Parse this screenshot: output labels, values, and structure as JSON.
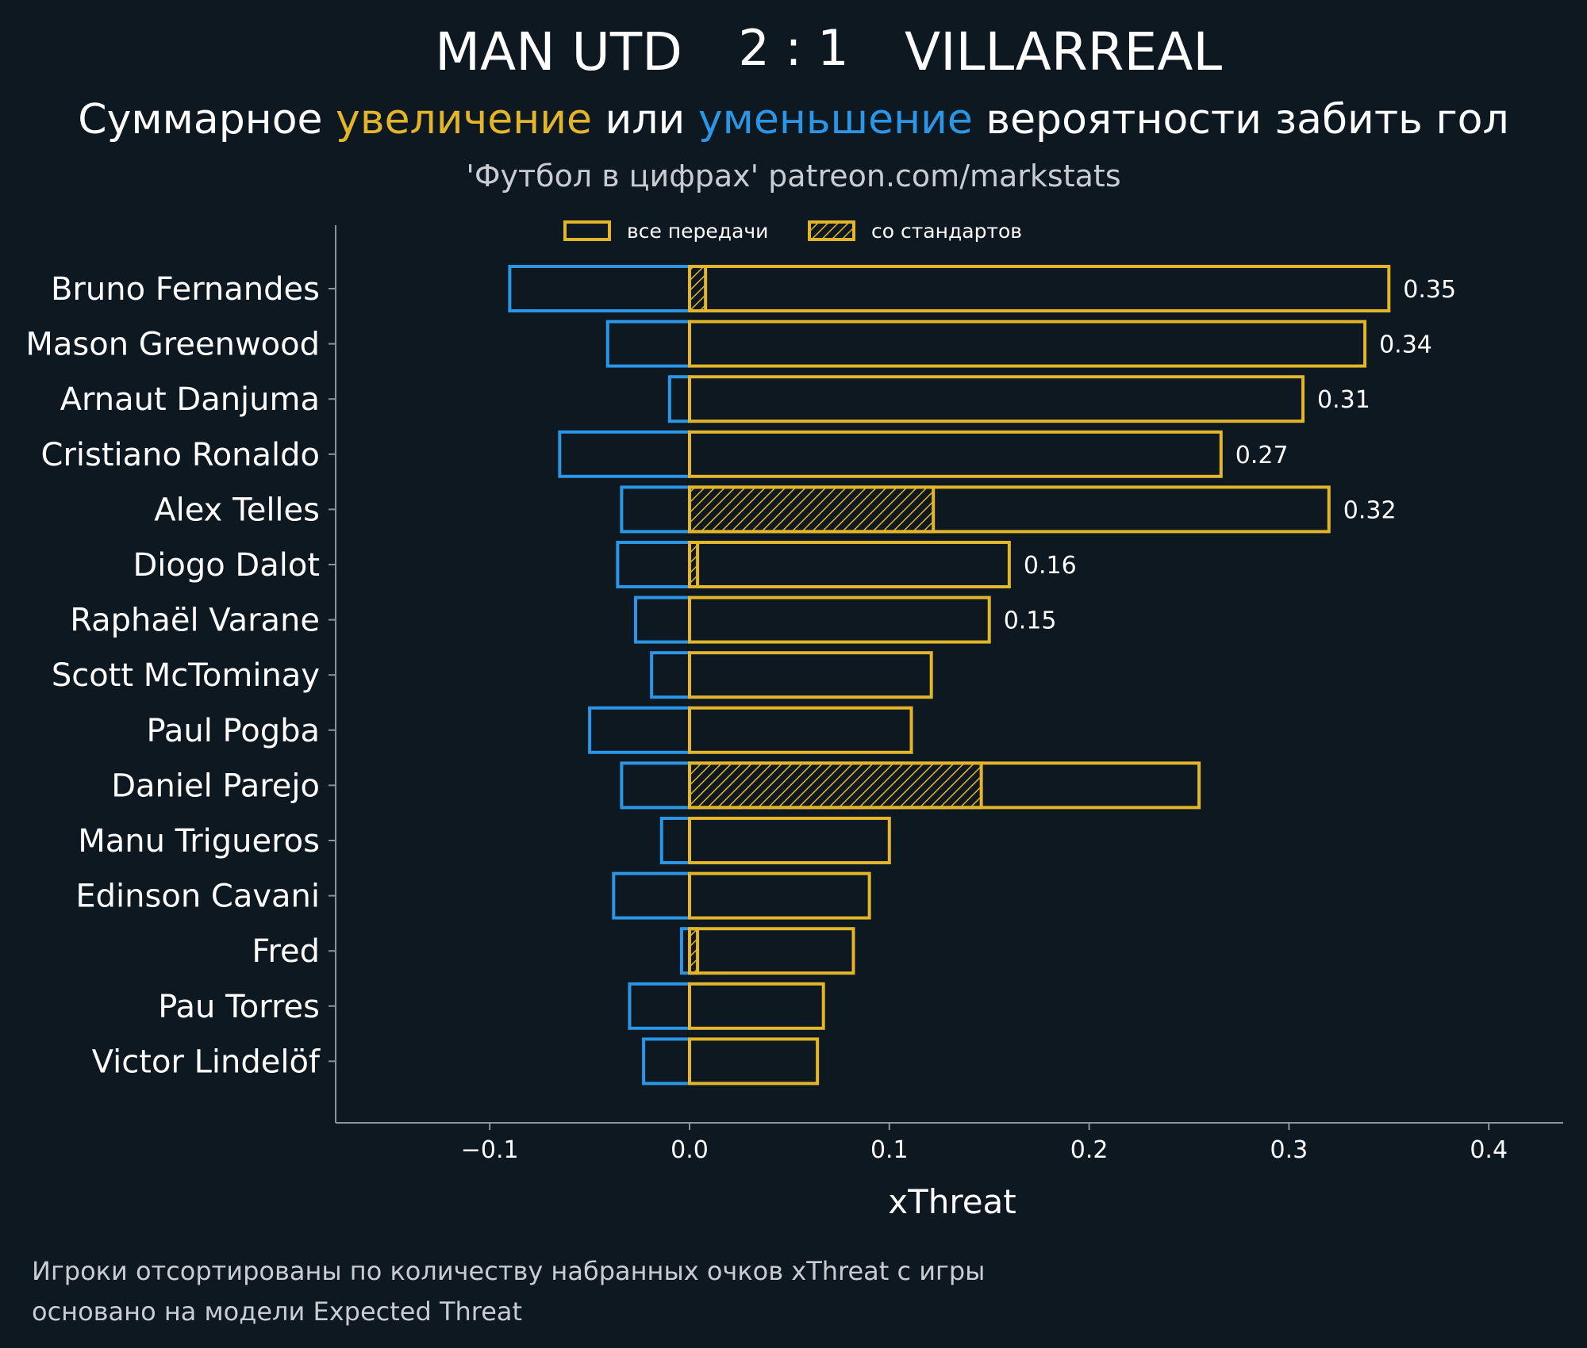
{
  "colors": {
    "background": "#0e1820",
    "gain": "#e3b52b",
    "loss": "#2b95e6",
    "text": "#ffffff",
    "muted": "#c9cdd1",
    "axis": "#8a949c"
  },
  "header": {
    "home_team": "MAN UTD",
    "score": "2 : 1",
    "away_team": "VILLARREAL",
    "subtitle_part1": "Суммарное ",
    "subtitle_gain": "увеличение",
    "subtitle_part2": " или ",
    "subtitle_loss": "уменьшение",
    "subtitle_part3": " вероятности забить гол",
    "source": "'Футбол в цифрах' patreon.com/markstats"
  },
  "legend": {
    "all_passes": "все передачи",
    "set_pieces": "со стандартов"
  },
  "footer": {
    "note1": "Игроки отсортированы по количеству набранных очков xThreat с игры",
    "note2": "основано на модели Expected Threat"
  },
  "chart_data": {
    "type": "bar",
    "orientation": "horizontal",
    "xlabel": "xThreat",
    "xlim": [
      -0.178,
      0.44
    ],
    "xticks": [
      -0.1,
      0.0,
      0.1,
      0.2,
      0.3,
      0.4
    ],
    "xtick_labels": [
      "−0.1",
      "0.0",
      "0.1",
      "0.2",
      "0.3",
      "0.4"
    ],
    "legend_position": "top-center",
    "categories": [
      "Bruno Fernandes",
      "Mason Greenwood",
      "Arnaut Danjuma",
      "Cristiano Ronaldo",
      "Alex Telles",
      "Diogo Dalot",
      "Raphaël Varane",
      "Scott McTominay",
      "Paul Pogba",
      "Daniel Parejo",
      "Manu Trigueros",
      "Edinson Cavani",
      "Fred",
      "Pau Torres",
      "Victor Lindelöf"
    ],
    "series": [
      {
        "name": "все передачи (увеличение)",
        "values": [
          0.35,
          0.338,
          0.307,
          0.266,
          0.32,
          0.16,
          0.15,
          0.121,
          0.111,
          0.255,
          0.1,
          0.09,
          0.082,
          0.067,
          0.064
        ]
      },
      {
        "name": "со стандартов",
        "values": [
          0.008,
          0,
          0,
          0,
          0.122,
          0.004,
          0,
          0,
          0,
          0.146,
          0,
          0,
          0.004,
          0,
          0
        ]
      },
      {
        "name": "уменьшение",
        "values": [
          -0.09,
          -0.041,
          -0.01,
          -0.065,
          -0.034,
          -0.036,
          -0.027,
          -0.019,
          -0.05,
          -0.034,
          -0.014,
          -0.038,
          -0.004,
          -0.03,
          -0.023
        ]
      }
    ],
    "value_labels": [
      "0.35",
      "0.34",
      "0.31",
      "0.27",
      "0.32",
      "0.16",
      "0.15",
      "",
      "",
      "",
      "",
      "",
      "",
      "",
      ""
    ]
  }
}
